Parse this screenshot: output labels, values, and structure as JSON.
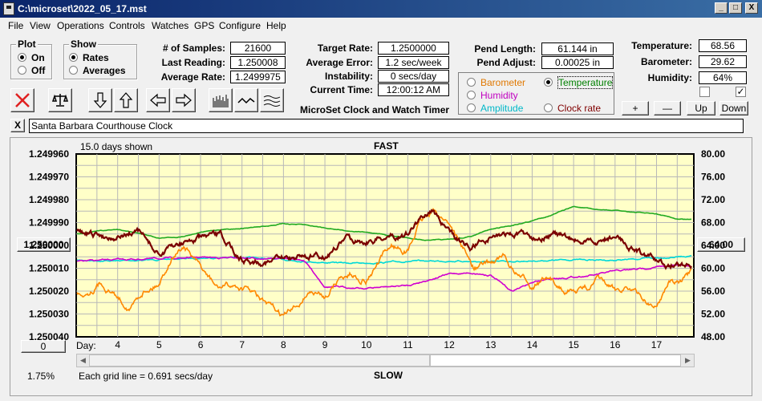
{
  "window": {
    "title": "C:\\microset\\2022_05_17.mst",
    "min": "_",
    "max": "□",
    "close": "X"
  },
  "menu": [
    "File",
    "View",
    "Operations",
    "Controls",
    "Watches",
    "GPS",
    "Configure",
    "Help"
  ],
  "plot_group": {
    "title": "Plot",
    "options": [
      "On",
      "Off"
    ],
    "selected": "On"
  },
  "show_group": {
    "title": "Show",
    "options": [
      "Rates",
      "Averages"
    ],
    "selected": "Rates"
  },
  "stats": {
    "samples_label": "# of Samples:",
    "samples": "21600",
    "last_label": "Last Reading:",
    "last": "1.250008",
    "avg_label": "Average Rate:",
    "avg": "1.2499975"
  },
  "target": {
    "rate_label": "Target Rate:",
    "rate": "1.2500000",
    "error_label": "Average Error:",
    "error": "1.2 sec/week",
    "inst_label": "Instability:",
    "inst": "0 secs/day",
    "time_label": "Current Time:",
    "time": "12:00:12 AM",
    "banner": "MicroSet Clock and Watch Timer"
  },
  "pend": {
    "length_label": "Pend Length:",
    "length": "61.144 in",
    "adjust_label": "Pend Adjust:",
    "adjust": "0.00025 in"
  },
  "sensor_select": {
    "barometer": "Barometer",
    "temperature": "Temperature",
    "humidity": "Humidity",
    "amplitude": "Amplitude",
    "clock_rate": "Clock rate",
    "selected": "Temperature",
    "colors": {
      "barometer": "#e07800",
      "temperature": "#008000",
      "humidity": "#c000c0",
      "amplitude": "#00c0c0",
      "clock_rate": "#800000"
    }
  },
  "env": {
    "temp_label": "Temperature:",
    "temp": "68.56",
    "baro_label": "Barometer:",
    "baro": "29.62",
    "hum_label": "Humidity:",
    "hum": "64%",
    "check1": false,
    "check2": true,
    "buttons": [
      "+",
      "—",
      "Up",
      "Down"
    ]
  },
  "toolbar_icons": [
    "cancel-icon",
    "balance-icon",
    "arrow-down-icon",
    "arrow-up-icon",
    "arrow-left-icon",
    "arrow-right-icon",
    "histogram-icon",
    "line-icon",
    "wave-icon"
  ],
  "description": {
    "close": "X",
    "text": "Santa Barbara Courthouse Clock"
  },
  "chart": {
    "days_shown": "15.0 days shown",
    "top_label": "FAST",
    "bottom_label": "SLOW",
    "grid_note": "Each grid line = 0.691 secs/day",
    "percent": "1.75%",
    "left_button": "1.250000",
    "right_button": "64.00",
    "bottom_button": "0",
    "day_label": "Day:"
  },
  "chart_data": {
    "type": "line",
    "left_axis": {
      "ticks": [
        "1.249960",
        "1.249970",
        "1.249980",
        "1.249990",
        "1.250000",
        "1.250010",
        "1.250020",
        "1.250030",
        "1.250040"
      ],
      "range": [
        1.24996,
        1.25004
      ],
      "inverted": true
    },
    "right_axis": {
      "ticks": [
        "80.00",
        "76.00",
        "72.00",
        "68.00",
        "64.00",
        "60.00",
        "56.00",
        "52.00",
        "48.00"
      ],
      "range": [
        48,
        80
      ]
    },
    "x_ticks": [
      "4",
      "5",
      "6",
      "7",
      "8",
      "9",
      "10",
      "11",
      "12",
      "13",
      "14",
      "15",
      "16",
      "17"
    ],
    "x_range": [
      3,
      17.9
    ],
    "grid": true,
    "series": [
      {
        "name": "Temperature",
        "color": "#22aa22",
        "axis": "right",
        "x": [
          3,
          3.5,
          4,
          4.5,
          5,
          5.5,
          6,
          6.5,
          7,
          7.5,
          8,
          8.5,
          9,
          9.5,
          10,
          10.5,
          11,
          11.5,
          12,
          12.5,
          13,
          13.5,
          14,
          14.5,
          15,
          15.5,
          16,
          16.5,
          17,
          17.5,
          17.85
        ],
        "y": [
          66,
          66.5,
          66.8,
          66.2,
          65.3,
          65.5,
          66.3,
          66.8,
          67,
          67.3,
          67.8,
          67.6,
          67.1,
          66.6,
          66.3,
          65.8,
          65.3,
          64.9,
          65,
          65.5,
          66.8,
          67.5,
          68.3,
          69.4,
          70.8,
          70.3,
          70.1,
          69.8,
          69.5,
          68.6,
          68.56
        ]
      },
      {
        "name": "Barometer",
        "color": "#ff8800",
        "axis": "right",
        "x": [
          3,
          3.3,
          3.6,
          4,
          4.3,
          4.6,
          5,
          5.3,
          5.6,
          6,
          6.4,
          6.8,
          7.2,
          7.6,
          8,
          8.3,
          8.6,
          9,
          9.3,
          9.6,
          10,
          10.3,
          10.6,
          11,
          11.3,
          11.6,
          12,
          12.3,
          12.6,
          13,
          13.3,
          13.6,
          14,
          14.3,
          14.6,
          15,
          15.3,
          15.6,
          16,
          16.3,
          16.6,
          17,
          17.3,
          17.6,
          17.85
        ],
        "y": [
          55.5,
          56,
          57.5,
          55,
          53,
          56,
          57.5,
          62,
          64,
          60,
          56.5,
          57,
          56,
          53.5,
          51.5,
          53,
          56,
          55,
          58,
          59,
          58,
          61,
          64,
          63,
          68,
          70,
          68,
          64,
          60,
          61,
          62,
          59,
          57,
          58,
          57,
          56,
          56.5,
          58,
          56,
          57,
          55,
          53,
          58,
          57.5,
          59
        ]
      },
      {
        "name": "Humidity",
        "color": "#d000d0",
        "axis": "right",
        "x": [
          3,
          4,
          5,
          6,
          7,
          8,
          8.5,
          9,
          10,
          11,
          12,
          12.5,
          13,
          13.5,
          14,
          14.5,
          15,
          15.5,
          16,
          16.5,
          17,
          17.5,
          17.85
        ],
        "y": [
          61.2,
          61.5,
          61.7,
          61.9,
          61.8,
          61.7,
          61.4,
          56.8,
          56.5,
          57,
          59,
          59.2,
          58.8,
          56,
          57.5,
          58.2,
          58.5,
          58.8,
          59.5,
          59.8,
          60.2,
          60.5,
          60.4
        ]
      },
      {
        "name": "Amplitude",
        "color": "#00d8d8",
        "axis": "right",
        "x": [
          3,
          4,
          5,
          6,
          7,
          8,
          9,
          10,
          11,
          12,
          13,
          14,
          15,
          16,
          17,
          17.85
        ],
        "y": [
          61.4,
          61.3,
          61.5,
          61.8,
          61.9,
          61.5,
          61,
          60.9,
          61.2,
          61.3,
          61.1,
          61.3,
          61.5,
          61.4,
          61.8,
          62.2
        ]
      },
      {
        "name": "Clock rate",
        "color": "#7a0000",
        "axis": "left",
        "x": [
          3,
          3.5,
          4,
          4.5,
          5,
          5.5,
          6,
          6.5,
          7,
          7.5,
          8,
          8.5,
          9,
          9.5,
          10,
          10.5,
          11,
          11.3,
          11.6,
          12,
          12.5,
          13,
          13.5,
          14,
          14.5,
          15,
          15.5,
          16,
          16.5,
          17,
          17.3,
          17.85
        ],
        "y": [
          1.249994,
          1.249996,
          1.249996,
          1.249994,
          1.250004,
          1.249999,
          1.249997,
          1.249996,
          1.250006,
          1.250007,
          1.250006,
          1.250004,
          1.250005,
          1.249997,
          1.249998,
          1.249996,
          1.249995,
          1.249988,
          1.249984,
          1.249995,
          1.250001,
          1.249996,
          1.249995,
          1.249996,
          1.249995,
          1.249998,
          1.249999,
          1.249996,
          1.250002,
          1.250007,
          1.250009,
          1.250008
        ]
      }
    ]
  }
}
